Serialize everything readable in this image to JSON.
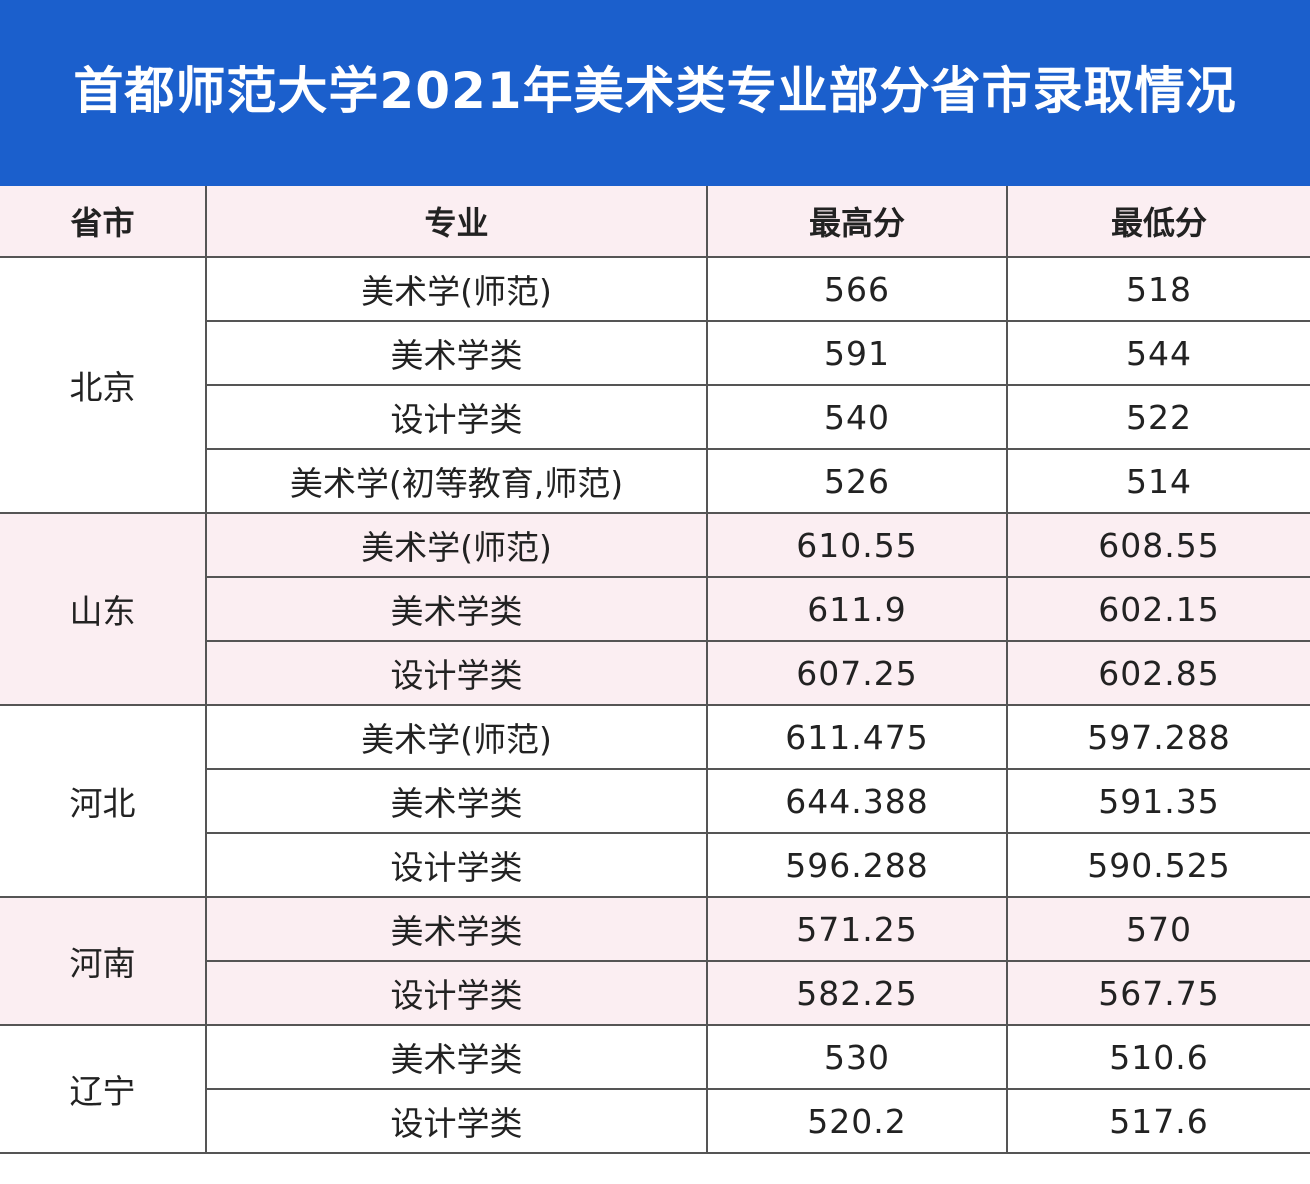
{
  "title": "首都师范大学2021年美术类专业部分省市录取情况",
  "table": {
    "headers": [
      "省市",
      "专业",
      "最高分",
      "最低分"
    ],
    "groups": [
      {
        "province": "北京",
        "rows": [
          {
            "major": "美术学(师范)",
            "max": "566",
            "min": "518"
          },
          {
            "major": "美术学类",
            "max": "591",
            "min": "544"
          },
          {
            "major": "设计学类",
            "max": "540",
            "min": "522"
          },
          {
            "major": "美术学(初等教育,师范)",
            "max": "526",
            "min": "514"
          }
        ]
      },
      {
        "province": "山东",
        "rows": [
          {
            "major": "美术学(师范)",
            "max": "610.55",
            "min": "608.55"
          },
          {
            "major": "美术学类",
            "max": "611.9",
            "min": "602.15"
          },
          {
            "major": "设计学类",
            "max": "607.25",
            "min": "602.85"
          }
        ]
      },
      {
        "province": "河北",
        "rows": [
          {
            "major": "美术学(师范)",
            "max": "611.475",
            "min": "597.288"
          },
          {
            "major": "美术学类",
            "max": "644.388",
            "min": "591.35"
          },
          {
            "major": "设计学类",
            "max": "596.288",
            "min": "590.525"
          }
        ]
      },
      {
        "province": "河南",
        "rows": [
          {
            "major": "美术学类",
            "max": "571.25",
            "min": "570"
          },
          {
            "major": "设计学类",
            "max": "582.25",
            "min": "567.75"
          }
        ]
      },
      {
        "province": "辽宁",
        "rows": [
          {
            "major": "美术学类",
            "max": "530",
            "min": "510.6"
          },
          {
            "major": "设计学类",
            "max": "520.2",
            "min": "517.6"
          }
        ]
      }
    ]
  },
  "colors": {
    "banner": "#1b5fcc",
    "row_tint": "#fbeef2",
    "grid": "#555555"
  }
}
